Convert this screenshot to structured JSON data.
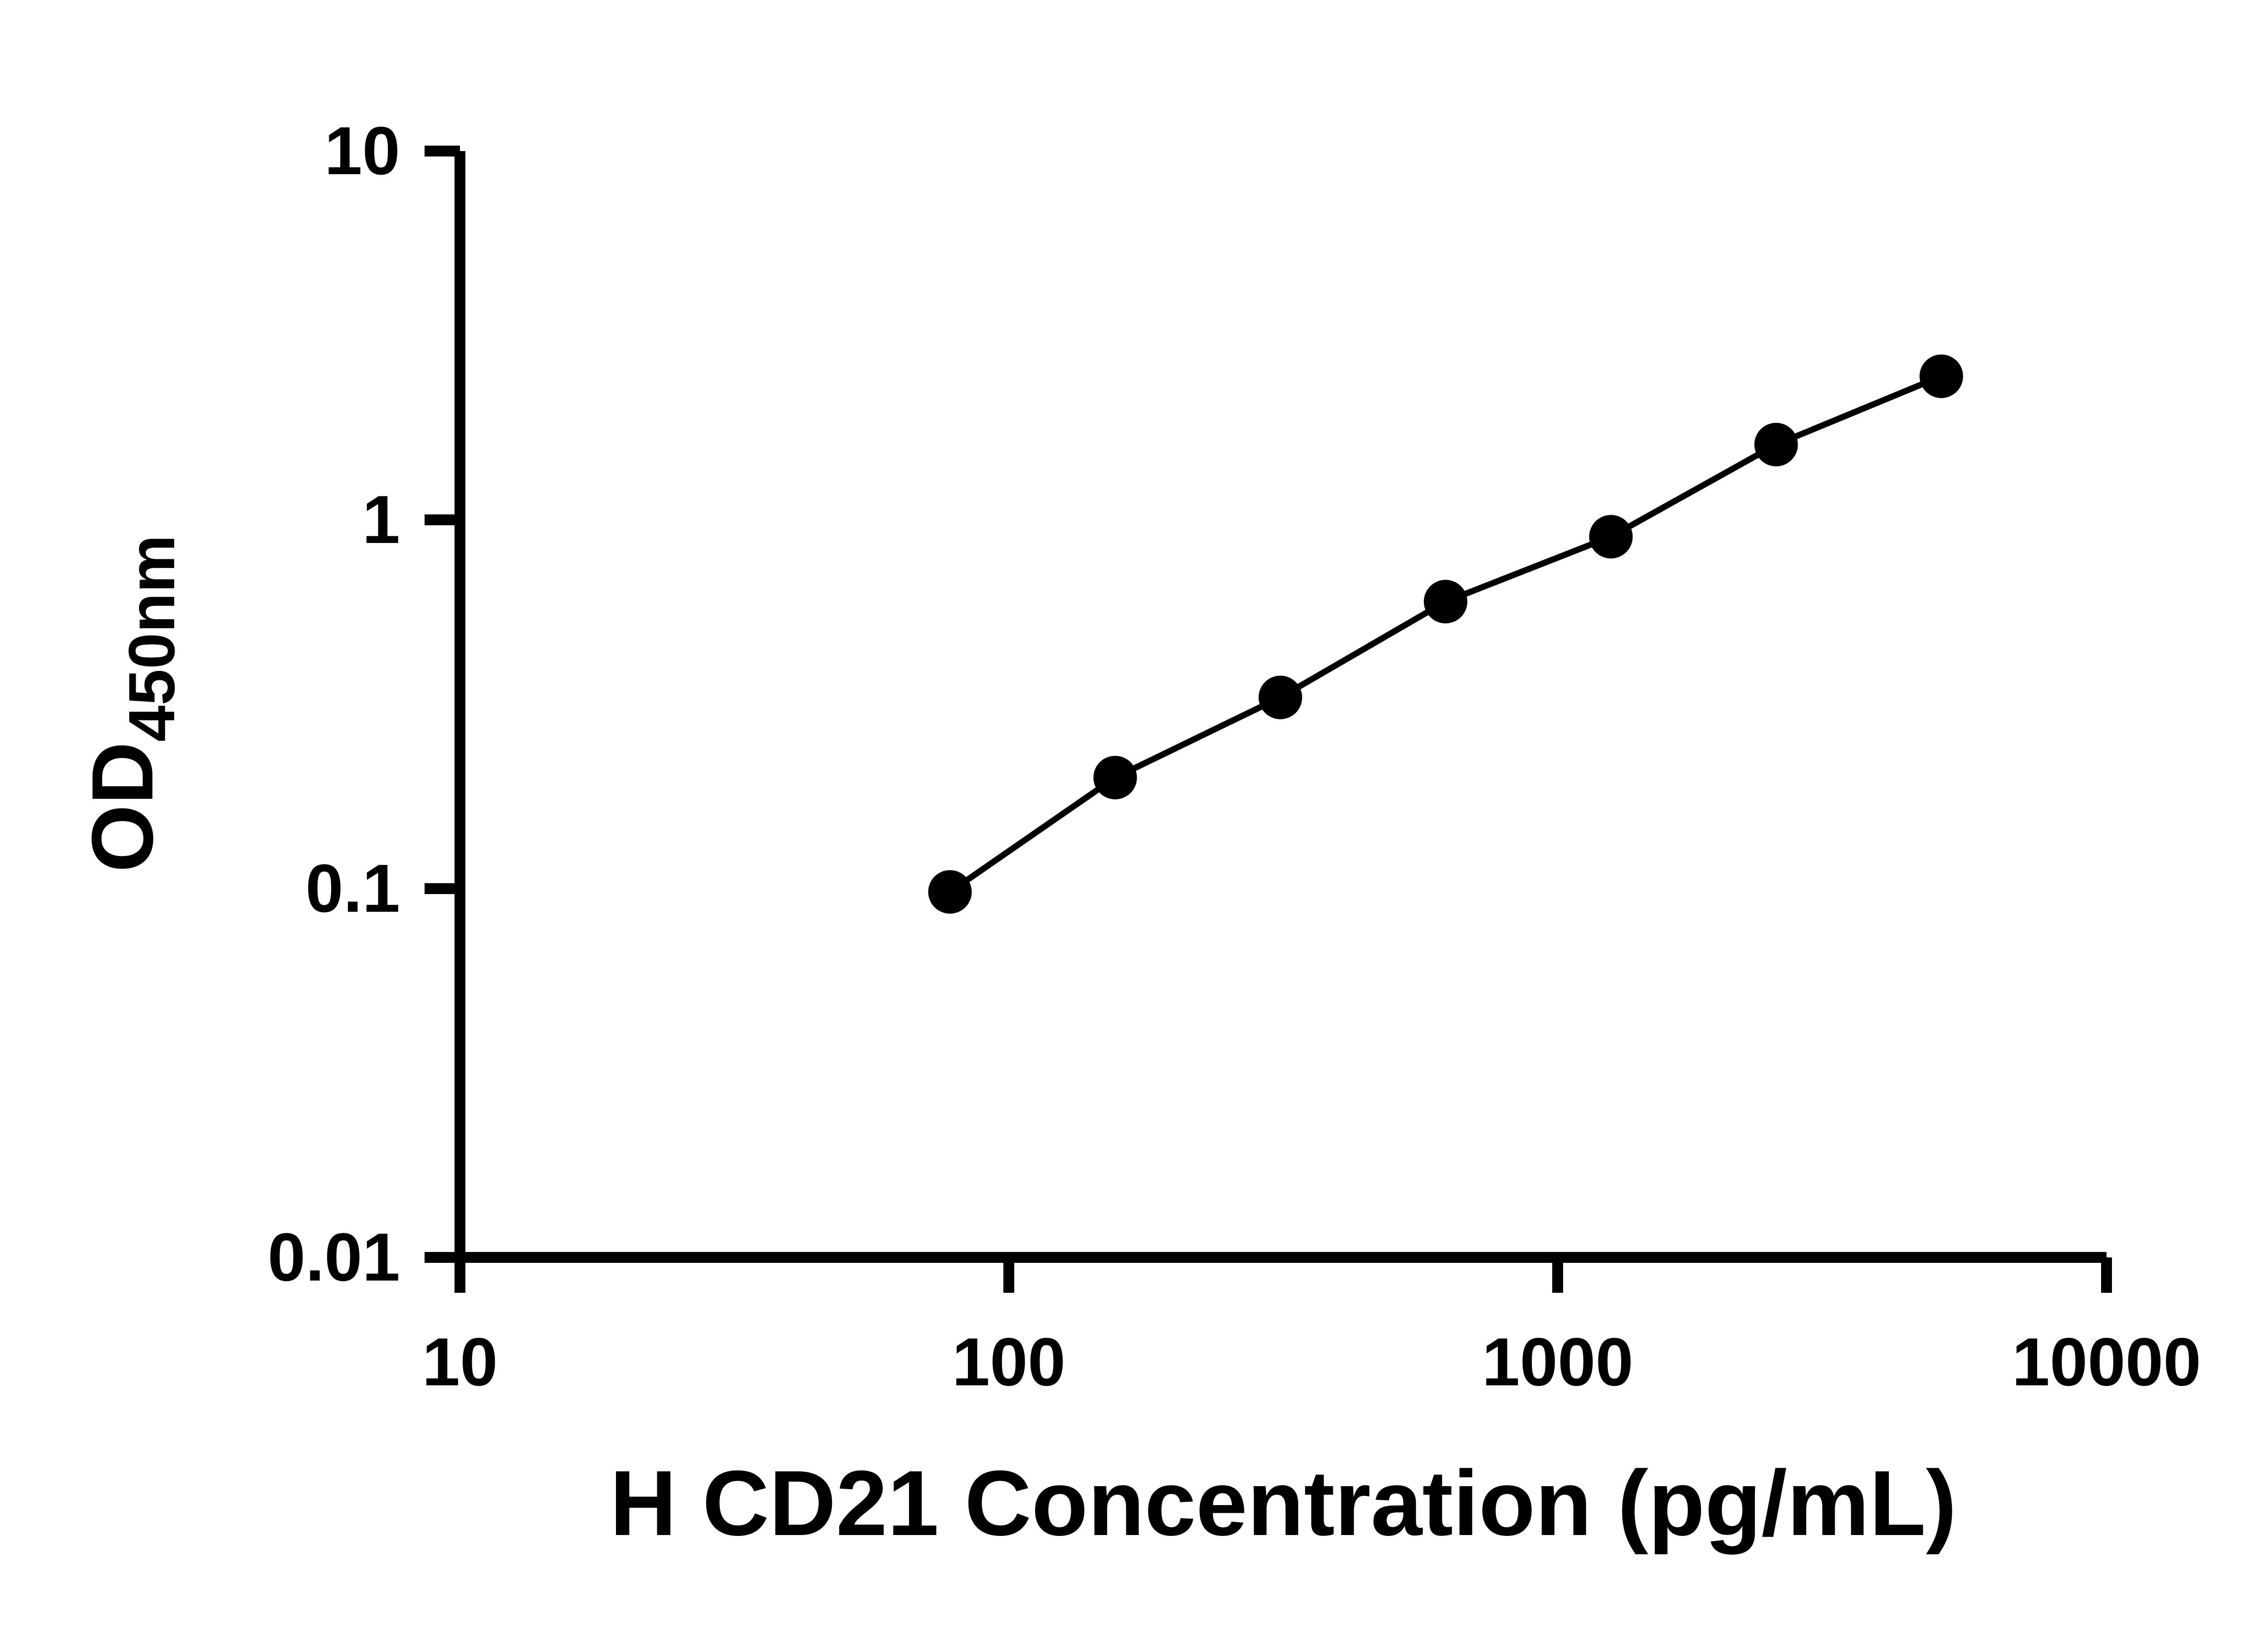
{
  "chart": {
    "ylabel_base": "OD",
    "ylabel_sub": "450nm"
  },
  "chart_data": {
    "type": "scatter",
    "title": "",
    "xlabel": "H CD21 Concentration (pg/mL)",
    "ylabel": "OD450nm",
    "x_scale": "log",
    "y_scale": "log",
    "xlim": [
      10,
      10000
    ],
    "ylim": [
      0.01,
      10
    ],
    "x_ticks": [
      10,
      100,
      1000,
      10000
    ],
    "y_ticks": [
      0.01,
      0.1,
      1,
      10
    ],
    "x": [
      78.125,
      156.25,
      312.5,
      625,
      1250,
      2500,
      5000
    ],
    "y": [
      0.098,
      0.2,
      0.33,
      0.6,
      0.9,
      1.6,
      2.45
    ],
    "line_color": "#000000",
    "marker_color": "#000000",
    "axis_color": "#000000",
    "background": "#ffffff",
    "grid": false,
    "legend": "none"
  }
}
